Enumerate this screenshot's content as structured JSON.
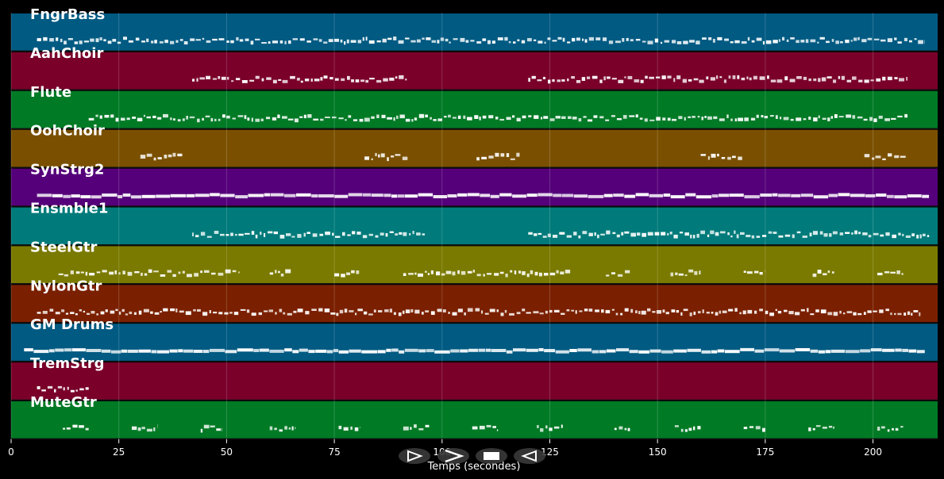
{
  "tracks": [
    {
      "name": "FngrBass",
      "color": "#005a82"
    },
    {
      "name": "AahChoir",
      "color": "#7a002a"
    },
    {
      "name": "Flute",
      "color": "#007a25"
    },
    {
      "name": "OohChoir",
      "color": "#7a5000"
    },
    {
      "name": "SynStrg2",
      "color": "#55007a"
    },
    {
      "name": "Ensmble1",
      "color": "#007a7a"
    },
    {
      "name": "SteelGtr",
      "color": "#7a7a00"
    },
    {
      "name": "NylonGtr",
      "color": "#7a2000"
    },
    {
      "name": "GM Drums",
      "color": "#005a82"
    },
    {
      "name": "TremStrg",
      "color": "#7a002a"
    },
    {
      "name": "MuteGtr",
      "color": "#007a25"
    }
  ],
  "xaxis": {
    "label": "Temps (secondes)",
    "ticks": [
      0,
      25,
      50,
      75,
      100,
      125,
      150,
      175,
      200
    ],
    "range": [
      0,
      215
    ]
  },
  "controls": [
    {
      "name": "play-button",
      "icon": "play-icon"
    },
    {
      "name": "fast-forward-button",
      "icon": "fast-forward-icon"
    },
    {
      "name": "stop-button",
      "icon": "stop-icon"
    },
    {
      "name": "rewind-button",
      "icon": "rewind-icon"
    }
  ],
  "note_segments": [
    [
      [
        6,
        212
      ]
    ],
    [
      [
        42,
        92
      ],
      [
        120,
        208
      ]
    ],
    [
      [
        18,
        208
      ]
    ],
    [
      [
        30,
        40
      ],
      [
        82,
        92
      ],
      [
        108,
        118
      ],
      [
        160,
        170
      ],
      [
        198,
        208
      ]
    ],
    [
      [
        6,
        213
      ]
    ],
    [
      [
        42,
        96
      ],
      [
        120,
        213
      ]
    ],
    [
      [
        11,
        53
      ],
      [
        60,
        65
      ],
      [
        75,
        81
      ],
      [
        91,
        130
      ],
      [
        138,
        144
      ],
      [
        153,
        160
      ],
      [
        170,
        175
      ],
      [
        186,
        191
      ],
      [
        201,
        207
      ]
    ],
    [
      [
        6,
        211
      ]
    ],
    [
      [
        3,
        212
      ]
    ],
    [
      [
        6,
        18
      ]
    ],
    [
      [
        12,
        18
      ],
      [
        28,
        34
      ],
      [
        44,
        49
      ],
      [
        60,
        66
      ],
      [
        76,
        81
      ],
      [
        91,
        97
      ],
      [
        107,
        113
      ],
      [
        122,
        128
      ],
      [
        140,
        144
      ],
      [
        154,
        160
      ],
      [
        170,
        175
      ],
      [
        185,
        191
      ],
      [
        201,
        207
      ]
    ]
  ]
}
